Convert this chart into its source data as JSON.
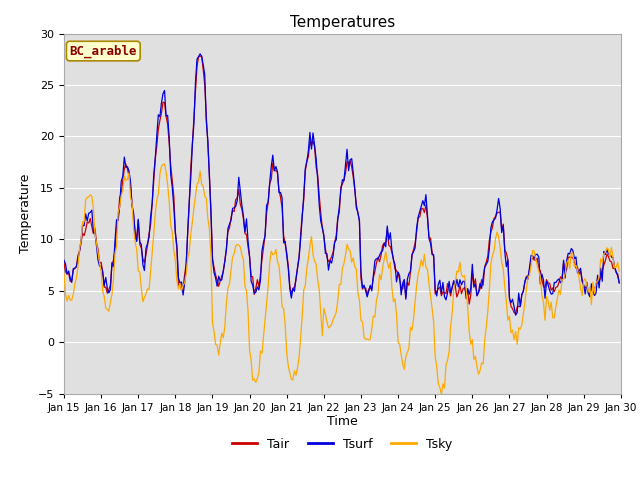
{
  "title": "Temperatures",
  "xlabel": "Time",
  "ylabel": "Temperature",
  "ylim": [
    -5,
    30
  ],
  "site_label": "BC_arable",
  "plot_bg_color": "#e0e0e0",
  "fig_bg_color": "#ffffff",
  "tick_labels": [
    "Jan 15",
    "Jan 16",
    "Jan 17",
    "Jan 18",
    "Jan 19",
    "Jan 20",
    "Jan 21",
    "Jan 22",
    "Jan 23",
    "Jan 24",
    "Jan 25",
    "Jan 26",
    "Jan 27",
    "Jan 28",
    "Jan 29",
    "Jan 30"
  ],
  "legend": [
    {
      "label": "Tair",
      "color": "#cc0000"
    },
    {
      "label": "Tsurf",
      "color": "#0000dd"
    },
    {
      "label": "Tsky",
      "color": "#ffaa00"
    }
  ],
  "line_colors": {
    "Tair": "#cc0000",
    "Tsurf": "#0000dd",
    "Tsky": "#ffaa00"
  },
  "yticks": [
    -5,
    0,
    5,
    10,
    15,
    20,
    25,
    30
  ],
  "tair_peaks": [
    12,
    17,
    23,
    28,
    14,
    17,
    19.5,
    17.5,
    9.5,
    13,
    5,
    12.5,
    8,
    8,
    8,
    8
  ],
  "tair_troughs": [
    6,
    5,
    8,
    5,
    6,
    5,
    5,
    8,
    5,
    5,
    5,
    5,
    3,
    5,
    5,
    7
  ],
  "tsky_peaks": [
    14,
    16,
    17,
    16,
    10,
    9,
    9,
    9,
    8,
    8,
    8,
    10,
    8,
    8,
    9,
    8
  ],
  "tsky_troughs": [
    4,
    3.5,
    4,
    5,
    -1,
    -4,
    -4,
    1,
    0,
    -2,
    -5,
    -3,
    0,
    3,
    5,
    5
  ]
}
